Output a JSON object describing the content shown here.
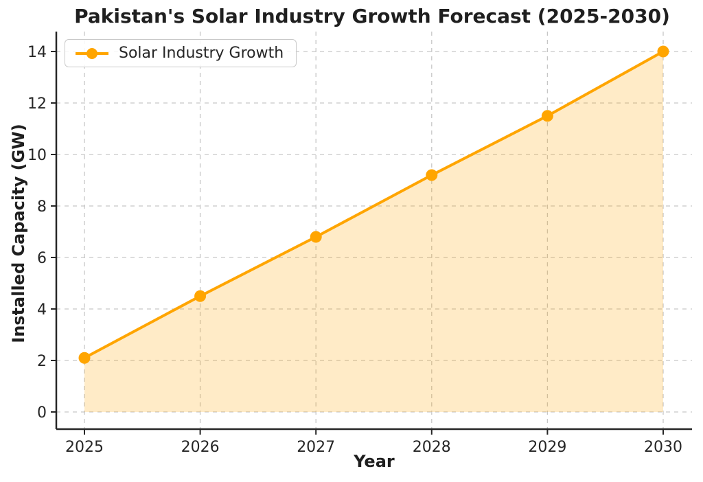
{
  "chart_data": {
    "type": "line",
    "title": "Pakistan's Solar Industry Growth Forecast (2025-2030)",
    "xlabel": "Year",
    "ylabel": "Installed Capacity (GW)",
    "x": [
      2025,
      2026,
      2027,
      2028,
      2029,
      2030
    ],
    "series": [
      {
        "name": "Solar Industry Growth",
        "values": [
          2.1,
          4.5,
          6.8,
          9.2,
          11.5,
          14.0
        ]
      }
    ],
    "y_ticks": [
      0,
      2,
      4,
      6,
      8,
      10,
      12,
      14
    ],
    "ylim": [
      -0.7,
      14.75
    ],
    "xlim": [
      2024.75,
      2030.25
    ],
    "grid": "dashed-both-axes",
    "area_fill": true,
    "legend_position": "upper-left",
    "colors": {
      "line": "#FFA500",
      "marker": "#FFA500",
      "area_fill": "rgba(255,165,0,0.22)",
      "grid": "#c6c6c6",
      "axis": "#262626",
      "text": "#262626",
      "legend_border": "#c9c9c9"
    }
  }
}
